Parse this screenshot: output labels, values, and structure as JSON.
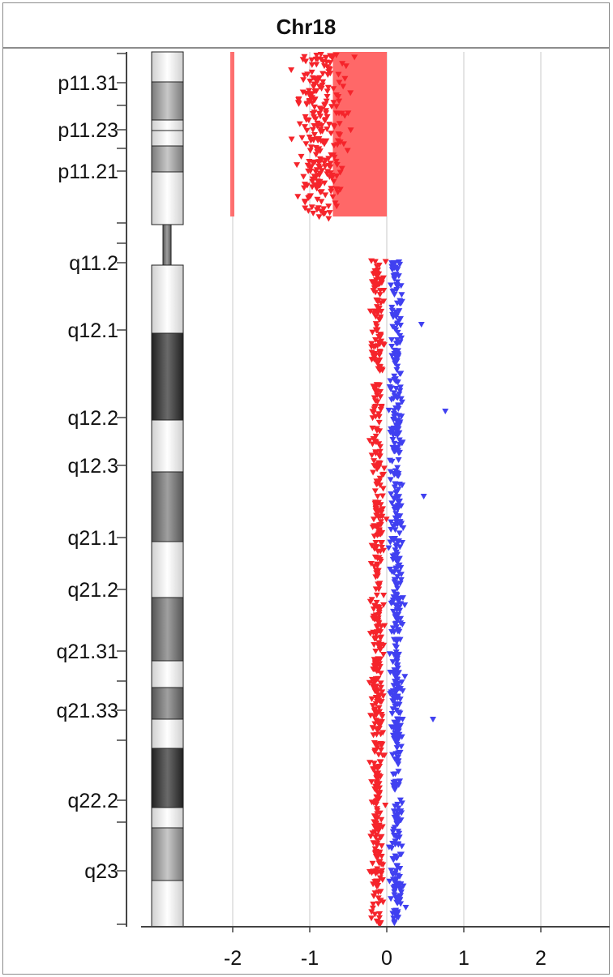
{
  "chart_data": {
    "type": "scatter",
    "title": "Chr18",
    "x_ticks": [
      "-2",
      "-1",
      "0",
      "1",
      "2"
    ],
    "x_tick_values": [
      -2,
      -1,
      0,
      1,
      2
    ],
    "xlim": [
      -2.2,
      2.1
    ],
    "grid": "vertical",
    "legend": "none",
    "band_labels": [
      "p11.31",
      "p11.23",
      "p11.21",
      "q11.2",
      "q12.1",
      "q12.2",
      "q12.3",
      "q21.1",
      "q21.2",
      "q21.31",
      "q21.33",
      "q22.2",
      "q23"
    ],
    "colors": {
      "loss": "#f5242b",
      "gain": "#4040f0",
      "loss_region": "#ff6060",
      "grid": "#c8c8c8",
      "axis": "#444444"
    },
    "segments": [
      {
        "arm": "p",
        "value": -2.0,
        "color": "loss_region"
      },
      {
        "arm": "p",
        "value": -0.7,
        "color": "loss_region"
      }
    ],
    "series": [
      {
        "color": "loss",
        "arm": "p",
        "center": -0.85,
        "spread": 0.3,
        "range_min": -1.7,
        "range_max": -0.05,
        "count": 260
      },
      {
        "color": "loss",
        "arm": "q",
        "center": -0.12,
        "spread": 0.08,
        "range_min": -0.45,
        "range_max": 0,
        "count": 520
      },
      {
        "color": "gain",
        "arm": "q",
        "center": 0.13,
        "spread": 0.08,
        "range_min": 0,
        "range_max": 0.72,
        "count": 520
      }
    ]
  }
}
